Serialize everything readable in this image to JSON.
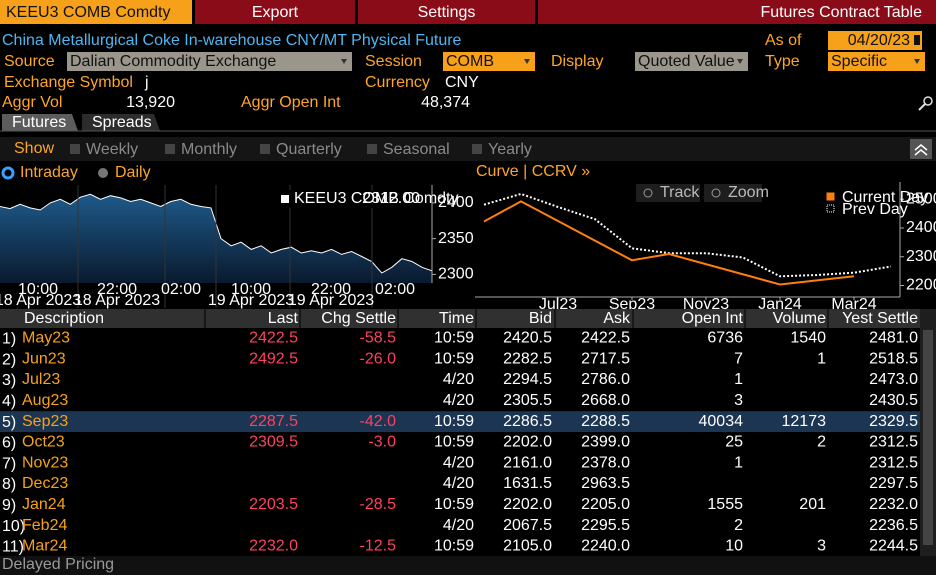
{
  "header": {
    "ticker": "KEEU3 COMB Comdty",
    "menu": [
      "Export",
      "Settings"
    ],
    "title": "Futures Contract Table"
  },
  "security": {
    "name": "China Metallurgical Coke In-warehouse CNY/MT Physical Future"
  },
  "fields": {
    "as_of_label": "As of",
    "as_of": "04/20/23",
    "source_label": "Source",
    "source": "Dalian Commodity Exchange",
    "session_label": "Session",
    "session": "COMB",
    "display_label": "Display",
    "display": "Quoted Value",
    "type_label": "Type",
    "type": "Specific",
    "symbol_label": "Exchange Symbol",
    "symbol": "j",
    "currency_label": "Currency",
    "currency": "CNY",
    "aggr_vol_label": "Aggr Vol",
    "aggr_vol": "13,920",
    "aggr_oi_label": "Aggr Open Int",
    "aggr_oi": "48,374"
  },
  "tabs": [
    "Futures",
    "Spreads"
  ],
  "show": {
    "label": "Show",
    "options": [
      "Weekly",
      "Monthly",
      "Quarterly",
      "Seasonal",
      "Yearly"
    ]
  },
  "modes": [
    "Intraday",
    "Daily"
  ],
  "chart_data": [
    {
      "type": "area",
      "series": [
        {
          "name": "KEEU3 COMB Comdty",
          "color": "#ffffff",
          "values": [
            2395,
            2392,
            2398,
            2393,
            2390,
            2400,
            2405,
            2398,
            2408,
            2412,
            2405,
            2410,
            2407,
            2402,
            2405,
            2400,
            2395,
            2402,
            2405,
            2398,
            2395,
            2393,
            2350,
            2340,
            2345,
            2335,
            2340,
            2330,
            2335,
            2338,
            2330,
            2333,
            2330,
            2335,
            2328,
            2332,
            2325,
            2318,
            2302,
            2310,
            2322,
            2318,
            2310,
            2305
          ]
        }
      ],
      "legend_value": "2312.00",
      "x_labels": [
        {
          "time": "10:00",
          "date": "18 Apr 2023"
        },
        {
          "time": "22:00",
          "date": "18 Apr 2023"
        },
        {
          "time": "02:00"
        },
        {
          "time": "10:00",
          "date": "19 Apr 2023"
        },
        {
          "time": "22:00",
          "date": "19 Apr 2023"
        },
        {
          "time": "02:00"
        }
      ],
      "ylim": [
        2288,
        2425
      ],
      "yticks": [
        2300,
        2350,
        2400
      ]
    },
    {
      "type": "line",
      "title": "Curve | CCRV »",
      "buttons": [
        "Track",
        "Zoom"
      ],
      "categories": [
        null,
        null,
        "Jul23",
        null,
        "Sep23",
        null,
        "Nov23",
        null,
        "Jan24",
        null,
        "Mar24",
        null
      ],
      "series": [
        {
          "name": "Current Day",
          "color": "#ff7f0e",
          "values": [
            2422.5,
            2492.5,
            null,
            null,
            2287.5,
            2309.5,
            null,
            null,
            2203.5,
            null,
            2232.0,
            null
          ]
        },
        {
          "name": "Prev Day",
          "color": "#ffffff",
          "dashed": true,
          "values": [
            2481.0,
            2518.5,
            2473.0,
            2430.5,
            2329.5,
            2312.5,
            2312.5,
            2297.5,
            2232.0,
            2236.5,
            2244.5,
            2266
          ]
        }
      ],
      "ylim": [
        2160,
        2560
      ],
      "yticks": [
        2200,
        2300,
        2400,
        2500
      ]
    }
  ],
  "table": {
    "columns": [
      "Description",
      "Last",
      "Chg Settle",
      "Time",
      "Bid",
      "Ask",
      "Open Int",
      "Volume",
      "Yest Settle"
    ],
    "rows": [
      [
        "1)",
        "May23",
        "2422.5",
        "-58.5",
        "10:59",
        "2420.5",
        "2422.5",
        "6736",
        "1540",
        "2481.0"
      ],
      [
        "2)",
        "Jun23",
        "2492.5",
        "-26.0",
        "10:59",
        "2282.5",
        "2717.5",
        "7",
        "1",
        "2518.5"
      ],
      [
        "3)",
        "Jul23",
        null,
        null,
        "4/20",
        "2294.5",
        "2786.0",
        "1",
        null,
        "2473.0"
      ],
      [
        "4)",
        "Aug23",
        null,
        null,
        "4/20",
        "2305.5",
        "2668.0",
        "3",
        null,
        "2430.5"
      ],
      [
        "5)",
        "Sep23",
        "2287.5",
        "-42.0",
        "10:59",
        "2286.5",
        "2288.5",
        "40034",
        "12173",
        "2329.5"
      ],
      [
        "6)",
        "Oct23",
        "2309.5",
        "-3.0",
        "10:59",
        "2202.0",
        "2399.0",
        "25",
        "2",
        "2312.5"
      ],
      [
        "7)",
        "Nov23",
        null,
        null,
        "4/20",
        "2161.0",
        "2378.0",
        "1",
        null,
        "2312.5"
      ],
      [
        "8)",
        "Dec23",
        null,
        null,
        "4/20",
        "1631.5",
        "2963.5",
        null,
        null,
        "2297.5"
      ],
      [
        "9)",
        "Jan24",
        "2203.5",
        "-28.5",
        "10:59",
        "2202.0",
        "2205.0",
        "1555",
        "201",
        "2232.0"
      ],
      [
        "10)",
        "Feb24",
        null,
        null,
        "4/20",
        "2067.5",
        "2295.5",
        "2",
        null,
        "2236.5"
      ],
      [
        "11)",
        "Mar24",
        "2232.0",
        "-12.5",
        "10:59",
        "2105.0",
        "2240.0",
        "10",
        "3",
        "2244.5"
      ]
    ]
  },
  "footer": "Delayed Pricing"
}
